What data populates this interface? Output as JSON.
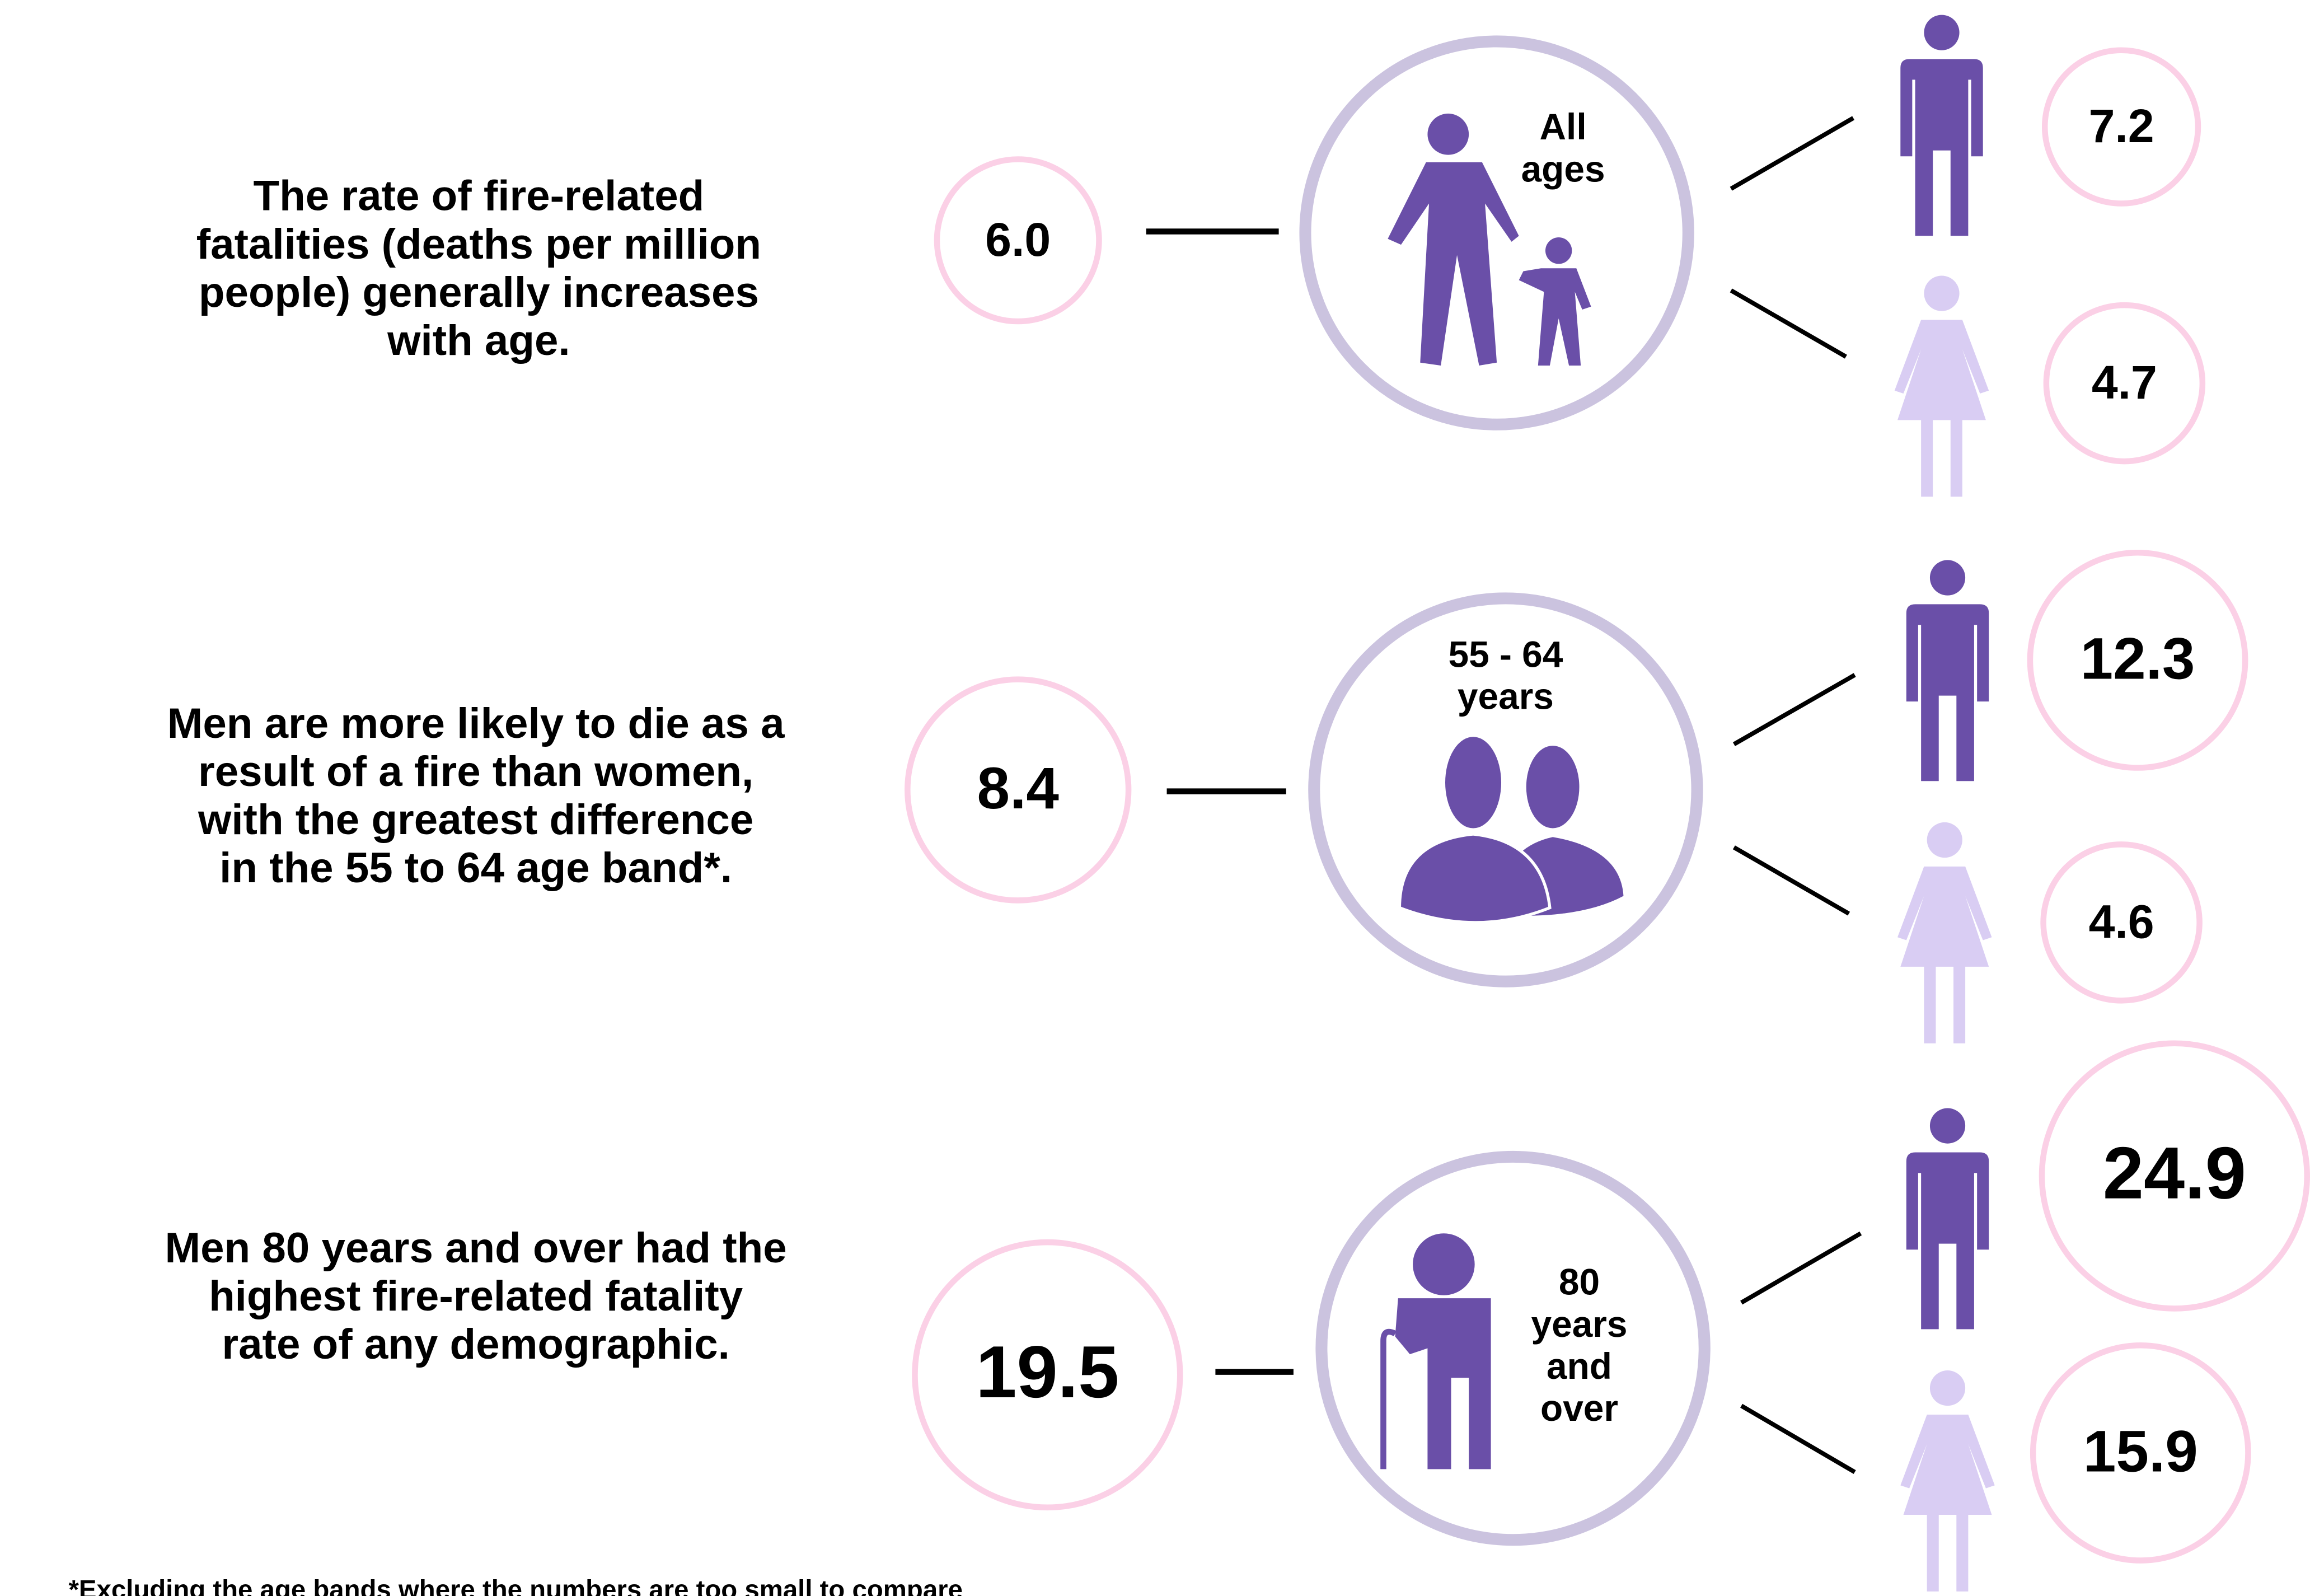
{
  "rows": [
    {
      "text": [
        "The rate of fire-related",
        "fatalities (deaths per million",
        "people) generally increases",
        "with age."
      ],
      "overall": "6.0",
      "group": [
        "All",
        "ages"
      ],
      "men": "7.2",
      "women": "4.7"
    },
    {
      "text": [
        "Men are more likely to die as a",
        "result of a fire than women,",
        "with the greatest difference",
        "in the 55 to 64 age band*."
      ],
      "overall": "8.4",
      "group": [
        "55 - 64",
        "years"
      ],
      "men": "12.3",
      "women": "4.6"
    },
    {
      "text": [
        "Men 80 years and over had the",
        "highest fire-related fatality",
        "rate of any demographic."
      ],
      "overall": "19.5",
      "group": [
        "80",
        "years",
        "and",
        "over"
      ],
      "men": "24.9",
      "women": "15.9"
    }
  ],
  "footnote": "*Excluding the age bands where the numbers are too small to compare"
}
